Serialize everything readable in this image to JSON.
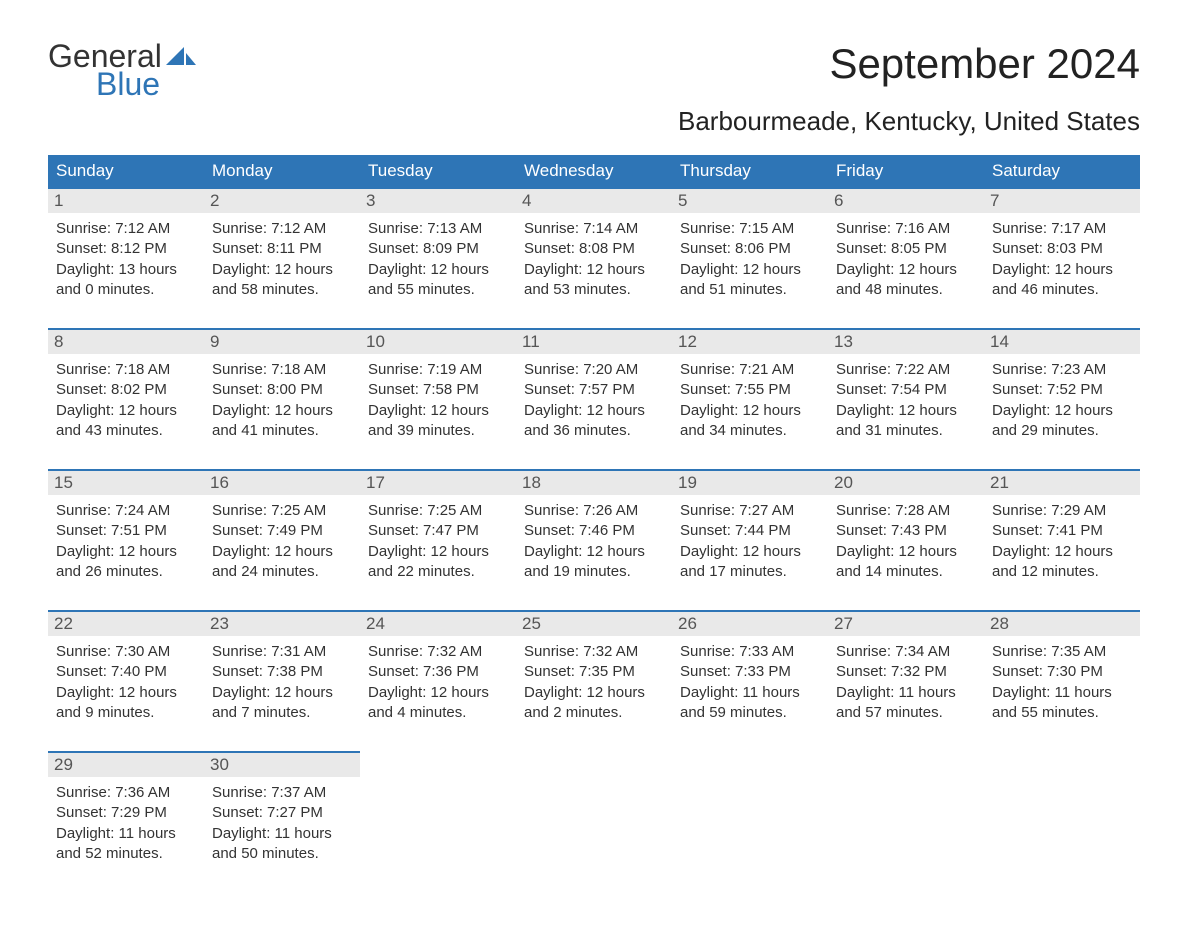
{
  "logo": {
    "line1": "General",
    "line2": "Blue"
  },
  "title": "September 2024",
  "subtitle": "Barbourmeade, Kentucky, United States",
  "style": {
    "header_bg": "#2e75b6",
    "header_text": "#ffffff",
    "date_bg": "#e9e9e9",
    "date_text": "#555555",
    "row_border": "#2e75b6",
    "body_text": "#333333",
    "logo_blue": "#2e75b6",
    "font_family": "Arial",
    "title_fontsize": 42,
    "subtitle_fontsize": 26,
    "header_fontsize": 17,
    "body_fontsize": 15,
    "columns": 7
  },
  "day_labels": [
    "Sunday",
    "Monday",
    "Tuesday",
    "Wednesday",
    "Thursday",
    "Friday",
    "Saturday"
  ],
  "weeks": [
    [
      {
        "n": "1",
        "sunrise": "Sunrise: 7:12 AM",
        "sunset": "Sunset: 8:12 PM",
        "d1": "Daylight: 13 hours",
        "d2": "and 0 minutes."
      },
      {
        "n": "2",
        "sunrise": "Sunrise: 7:12 AM",
        "sunset": "Sunset: 8:11 PM",
        "d1": "Daylight: 12 hours",
        "d2": "and 58 minutes."
      },
      {
        "n": "3",
        "sunrise": "Sunrise: 7:13 AM",
        "sunset": "Sunset: 8:09 PM",
        "d1": "Daylight: 12 hours",
        "d2": "and 55 minutes."
      },
      {
        "n": "4",
        "sunrise": "Sunrise: 7:14 AM",
        "sunset": "Sunset: 8:08 PM",
        "d1": "Daylight: 12 hours",
        "d2": "and 53 minutes."
      },
      {
        "n": "5",
        "sunrise": "Sunrise: 7:15 AM",
        "sunset": "Sunset: 8:06 PM",
        "d1": "Daylight: 12 hours",
        "d2": "and 51 minutes."
      },
      {
        "n": "6",
        "sunrise": "Sunrise: 7:16 AM",
        "sunset": "Sunset: 8:05 PM",
        "d1": "Daylight: 12 hours",
        "d2": "and 48 minutes."
      },
      {
        "n": "7",
        "sunrise": "Sunrise: 7:17 AM",
        "sunset": "Sunset: 8:03 PM",
        "d1": "Daylight: 12 hours",
        "d2": "and 46 minutes."
      }
    ],
    [
      {
        "n": "8",
        "sunrise": "Sunrise: 7:18 AM",
        "sunset": "Sunset: 8:02 PM",
        "d1": "Daylight: 12 hours",
        "d2": "and 43 minutes."
      },
      {
        "n": "9",
        "sunrise": "Sunrise: 7:18 AM",
        "sunset": "Sunset: 8:00 PM",
        "d1": "Daylight: 12 hours",
        "d2": "and 41 minutes."
      },
      {
        "n": "10",
        "sunrise": "Sunrise: 7:19 AM",
        "sunset": "Sunset: 7:58 PM",
        "d1": "Daylight: 12 hours",
        "d2": "and 39 minutes."
      },
      {
        "n": "11",
        "sunrise": "Sunrise: 7:20 AM",
        "sunset": "Sunset: 7:57 PM",
        "d1": "Daylight: 12 hours",
        "d2": "and 36 minutes."
      },
      {
        "n": "12",
        "sunrise": "Sunrise: 7:21 AM",
        "sunset": "Sunset: 7:55 PM",
        "d1": "Daylight: 12 hours",
        "d2": "and 34 minutes."
      },
      {
        "n": "13",
        "sunrise": "Sunrise: 7:22 AM",
        "sunset": "Sunset: 7:54 PM",
        "d1": "Daylight: 12 hours",
        "d2": "and 31 minutes."
      },
      {
        "n": "14",
        "sunrise": "Sunrise: 7:23 AM",
        "sunset": "Sunset: 7:52 PM",
        "d1": "Daylight: 12 hours",
        "d2": "and 29 minutes."
      }
    ],
    [
      {
        "n": "15",
        "sunrise": "Sunrise: 7:24 AM",
        "sunset": "Sunset: 7:51 PM",
        "d1": "Daylight: 12 hours",
        "d2": "and 26 minutes."
      },
      {
        "n": "16",
        "sunrise": "Sunrise: 7:25 AM",
        "sunset": "Sunset: 7:49 PM",
        "d1": "Daylight: 12 hours",
        "d2": "and 24 minutes."
      },
      {
        "n": "17",
        "sunrise": "Sunrise: 7:25 AM",
        "sunset": "Sunset: 7:47 PM",
        "d1": "Daylight: 12 hours",
        "d2": "and 22 minutes."
      },
      {
        "n": "18",
        "sunrise": "Sunrise: 7:26 AM",
        "sunset": "Sunset: 7:46 PM",
        "d1": "Daylight: 12 hours",
        "d2": "and 19 minutes."
      },
      {
        "n": "19",
        "sunrise": "Sunrise: 7:27 AM",
        "sunset": "Sunset: 7:44 PM",
        "d1": "Daylight: 12 hours",
        "d2": "and 17 minutes."
      },
      {
        "n": "20",
        "sunrise": "Sunrise: 7:28 AM",
        "sunset": "Sunset: 7:43 PM",
        "d1": "Daylight: 12 hours",
        "d2": "and 14 minutes."
      },
      {
        "n": "21",
        "sunrise": "Sunrise: 7:29 AM",
        "sunset": "Sunset: 7:41 PM",
        "d1": "Daylight: 12 hours",
        "d2": "and 12 minutes."
      }
    ],
    [
      {
        "n": "22",
        "sunrise": "Sunrise: 7:30 AM",
        "sunset": "Sunset: 7:40 PM",
        "d1": "Daylight: 12 hours",
        "d2": "and 9 minutes."
      },
      {
        "n": "23",
        "sunrise": "Sunrise: 7:31 AM",
        "sunset": "Sunset: 7:38 PM",
        "d1": "Daylight: 12 hours",
        "d2": "and 7 minutes."
      },
      {
        "n": "24",
        "sunrise": "Sunrise: 7:32 AM",
        "sunset": "Sunset: 7:36 PM",
        "d1": "Daylight: 12 hours",
        "d2": "and 4 minutes."
      },
      {
        "n": "25",
        "sunrise": "Sunrise: 7:32 AM",
        "sunset": "Sunset: 7:35 PM",
        "d1": "Daylight: 12 hours",
        "d2": "and 2 minutes."
      },
      {
        "n": "26",
        "sunrise": "Sunrise: 7:33 AM",
        "sunset": "Sunset: 7:33 PM",
        "d1": "Daylight: 11 hours",
        "d2": "and 59 minutes."
      },
      {
        "n": "27",
        "sunrise": "Sunrise: 7:34 AM",
        "sunset": "Sunset: 7:32 PM",
        "d1": "Daylight: 11 hours",
        "d2": "and 57 minutes."
      },
      {
        "n": "28",
        "sunrise": "Sunrise: 7:35 AM",
        "sunset": "Sunset: 7:30 PM",
        "d1": "Daylight: 11 hours",
        "d2": "and 55 minutes."
      }
    ],
    [
      {
        "n": "29",
        "sunrise": "Sunrise: 7:36 AM",
        "sunset": "Sunset: 7:29 PM",
        "d1": "Daylight: 11 hours",
        "d2": "and 52 minutes."
      },
      {
        "n": "30",
        "sunrise": "Sunrise: 7:37 AM",
        "sunset": "Sunset: 7:27 PM",
        "d1": "Daylight: 11 hours",
        "d2": "and 50 minutes."
      },
      null,
      null,
      null,
      null,
      null
    ]
  ]
}
